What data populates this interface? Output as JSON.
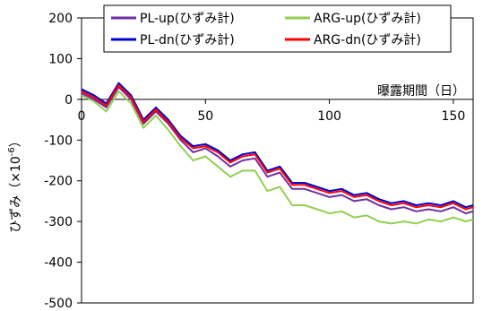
{
  "chart_data": {
    "type": "line",
    "title": "",
    "xlabel": "曝露期間（日）",
    "ylabel": "ひずみ（×10⁻⁶）",
    "ylabel_main": "ひずみ（×10",
    "ylabel_sup": "-6",
    "ylabel_tail": "）",
    "xlim": [
      0,
      158
    ],
    "ylim": [
      -500,
      200
    ],
    "x_ticks": [
      0,
      50,
      100,
      150
    ],
    "x_tick_labels": [
      "0",
      "50",
      "100",
      "150"
    ],
    "y_ticks": [
      200,
      100,
      0,
      -100,
      -200,
      -300,
      -400,
      -500
    ],
    "y_tick_labels": [
      "200",
      "100",
      "0",
      "-100",
      "-200",
      "-300",
      "-400",
      "-500"
    ],
    "grid": false,
    "legend_placement": "top",
    "series": [
      {
        "name": "PL-up(ひずみ計)",
        "color": "#7030A0",
        "x": [
          0,
          5,
          10,
          15,
          20,
          25,
          30,
          35,
          40,
          45,
          50,
          55,
          60,
          65,
          70,
          75,
          80,
          85,
          90,
          95,
          100,
          105,
          110,
          115,
          120,
          125,
          130,
          135,
          140,
          145,
          150,
          155,
          158
        ],
        "y": [
          15,
          0,
          -20,
          30,
          0,
          -60,
          -30,
          -60,
          -100,
          -130,
          -120,
          -140,
          -165,
          -150,
          -145,
          -190,
          -180,
          -220,
          -220,
          -230,
          -240,
          -235,
          -250,
          -245,
          -260,
          -270,
          -265,
          -275,
          -270,
          -275,
          -265,
          -280,
          -275
        ]
      },
      {
        "name": "PL-dn(ひずみ計)",
        "color": "#0000CC",
        "x": [
          0,
          5,
          10,
          15,
          20,
          25,
          30,
          35,
          40,
          45,
          50,
          55,
          60,
          65,
          70,
          75,
          80,
          85,
          90,
          95,
          100,
          105,
          110,
          115,
          120,
          125,
          130,
          135,
          140,
          145,
          150,
          155,
          158
        ],
        "y": [
          25,
          10,
          -10,
          40,
          10,
          -50,
          -20,
          -50,
          -90,
          -115,
          -110,
          -125,
          -150,
          -135,
          -130,
          -175,
          -165,
          -205,
          -205,
          -215,
          -225,
          -220,
          -235,
          -230,
          -245,
          -255,
          -250,
          -260,
          -255,
          -260,
          -250,
          -265,
          -260
        ]
      },
      {
        "name": "ARG-up(ひずみ計)",
        "color": "#92D050",
        "x": [
          0,
          5,
          10,
          15,
          20,
          25,
          30,
          35,
          40,
          45,
          50,
          55,
          60,
          65,
          70,
          75,
          80,
          85,
          90,
          95,
          100,
          105,
          110,
          115,
          120,
          125,
          130,
          135,
          140,
          145,
          150,
          155,
          158
        ],
        "y": [
          10,
          -5,
          -30,
          20,
          -10,
          -70,
          -40,
          -75,
          -115,
          -150,
          -140,
          -165,
          -190,
          -175,
          -175,
          -225,
          -215,
          -260,
          -260,
          -270,
          -280,
          -275,
          -290,
          -285,
          -300,
          -305,
          -300,
          -305,
          -295,
          -300,
          -290,
          -300,
          -295
        ]
      },
      {
        "name": "ARG-dn(ひずみ計)",
        "color": "#FF0000",
        "x": [
          0,
          5,
          10,
          15,
          20,
          25,
          30,
          35,
          40,
          45,
          50,
          55,
          60,
          65,
          70,
          75,
          80,
          85,
          90,
          95,
          100,
          105,
          110,
          115,
          120,
          125,
          130,
          135,
          140,
          145,
          150,
          155,
          158
        ],
        "y": [
          20,
          5,
          -15,
          35,
          5,
          -55,
          -25,
          -55,
          -95,
          -120,
          -115,
          -130,
          -155,
          -140,
          -135,
          -180,
          -170,
          -210,
          -210,
          -220,
          -230,
          -225,
          -240,
          -235,
          -250,
          -260,
          -255,
          -265,
          -260,
          -265,
          -255,
          -270,
          -265
        ]
      }
    ],
    "legend_order": [
      "PL-up(ひずみ計)",
      "ARG-up(ひずみ計)",
      "PL-dn(ひずみ計)",
      "ARG-dn(ひずみ計)"
    ]
  }
}
